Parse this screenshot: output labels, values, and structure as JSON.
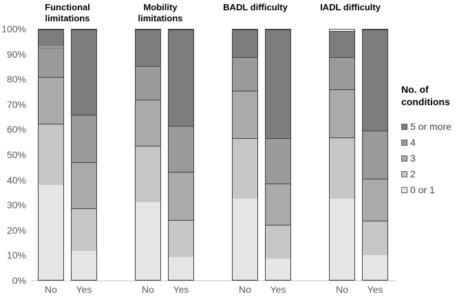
{
  "chart_data": {
    "type": "bar",
    "stacked": true,
    "units": "percent",
    "title": "",
    "xlabel": "",
    "ylabel": "",
    "ylim": [
      0,
      100
    ],
    "grid": false,
    "yticks": [
      "0%",
      "10%",
      "20%",
      "30%",
      "40%",
      "50%",
      "60%",
      "70%",
      "80%",
      "90%",
      "100%"
    ],
    "series_order_bottom_to_top": [
      "0 or 1",
      "2",
      "3",
      "4",
      "5 or more"
    ],
    "series_colors": {
      "0 or 1": "#e6e6e6",
      "2": "#c6c6c6",
      "3": "#aaaaaa",
      "4": "#9a9a9a",
      "5 or more": "#7d7d7d"
    },
    "groups": [
      {
        "title": "Functional limitations",
        "bars": [
          {
            "label": "No",
            "values": [
              38,
              24.5,
              18.5,
              12,
              7
            ]
          },
          {
            "label": "Yes",
            "values": [
              11.5,
              17,
              18.5,
              19,
              34
            ]
          }
        ]
      },
      {
        "title": "Mobility limitations",
        "bars": [
          {
            "label": "No",
            "values": [
              31,
              22.5,
              18.5,
              13.5,
              14.5
            ]
          },
          {
            "label": "Yes",
            "values": [
              9,
              15,
              19,
              18.5,
              38.5
            ]
          }
        ]
      },
      {
        "title": "BADL difficulty",
        "bars": [
          {
            "label": "No",
            "values": [
              32.5,
              24,
              19,
              13.5,
              11
            ]
          },
          {
            "label": "Yes",
            "values": [
              8.5,
              13.5,
              16.5,
              18,
              43.5
            ]
          }
        ]
      },
      {
        "title": "IADL difficulty",
        "bars": [
          {
            "label": "No",
            "values": [
              32.5,
              24.5,
              19,
              13,
              10.5
            ]
          },
          {
            "label": "Yes",
            "values": [
              10,
              13.5,
              17,
              19,
              40.5
            ]
          }
        ]
      }
    ],
    "legend": {
      "title": "No. of conditions",
      "position": "right",
      "entries_top_to_bottom": [
        "5 or more",
        "4",
        "3",
        "2",
        "0 or 1"
      ]
    }
  },
  "colors": {
    "segment_border": "#404040",
    "axis_text": "#595959",
    "legend_text": "#3f3f3f",
    "baseline": "#c6c6c6"
  }
}
